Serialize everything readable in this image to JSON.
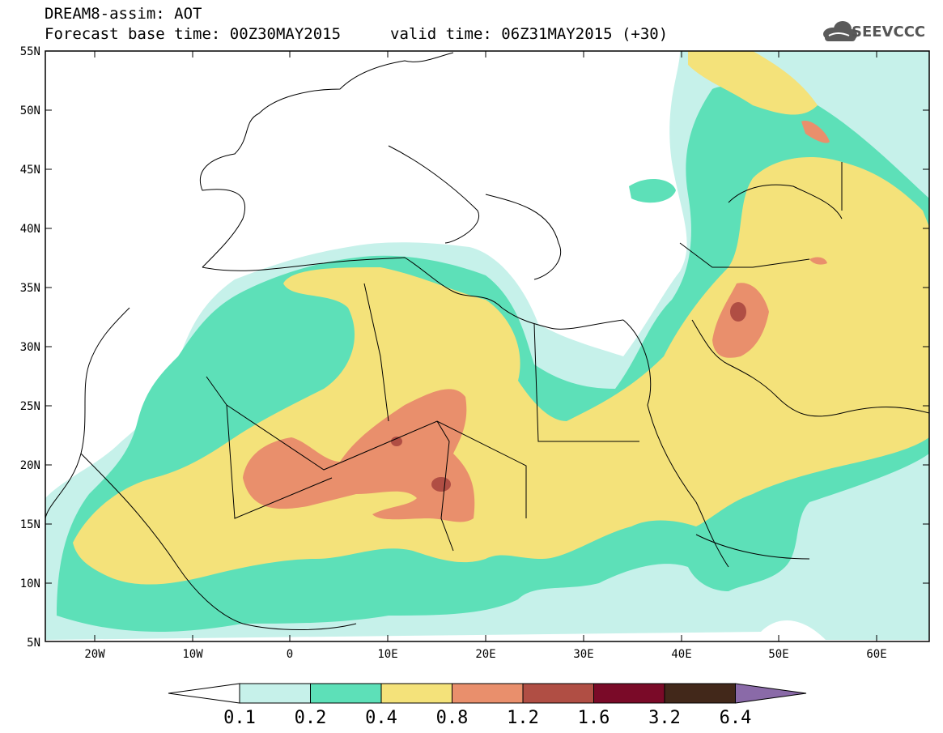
{
  "header": {
    "title": "DREAM8-assim: AOT",
    "base_time": "Forecast base time: 00Z30MAY2015",
    "valid_time": "valid time: 06Z31MAY2015 (+30)"
  },
  "logo": {
    "text": "SEEVCCC",
    "icon": "cloud-icon"
  },
  "map": {
    "lat_labels": [
      "55N",
      "50N",
      "45N",
      "40N",
      "35N",
      "30N",
      "25N",
      "20N",
      "15N",
      "10N",
      "5N"
    ],
    "lon_labels": [
      "20W",
      "10W",
      "0",
      "10E",
      "20E",
      "30E",
      "40E",
      "50E",
      "60E"
    ],
    "lat_range": [
      5,
      55
    ],
    "lon_range": [
      -25,
      65
    ],
    "variable": "AOT"
  },
  "colorbar": {
    "levels": [
      "0.1",
      "0.2",
      "0.4",
      "0.8",
      "1.2",
      "1.6",
      "3.2",
      "6.4"
    ],
    "colors": [
      "#ffffff",
      "#c6f1ea",
      "#5de0b8",
      "#f4e27a",
      "#e98f6c",
      "#b04e44",
      "#7a0a28",
      "#42281a",
      "#8a6aa8"
    ]
  },
  "fields": {
    "color_low": "#c6f1ea",
    "color_mid": "#5de0b8",
    "color_high": "#f4e27a",
    "color_higher": "#e98f6c",
    "color_peak": "#b04e44"
  }
}
